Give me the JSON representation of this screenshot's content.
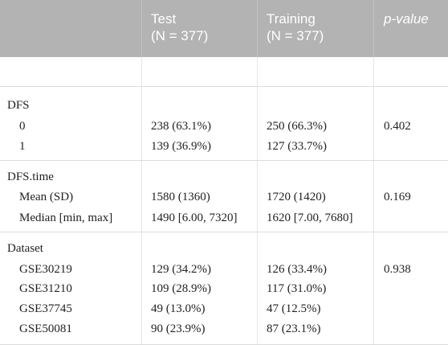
{
  "header": {
    "col_test_l1": "Test",
    "col_test_l2": "(N = 377)",
    "col_train_l1": "Training",
    "col_train_l2": "(N = 377)",
    "col_p": "p-value"
  },
  "sections": {
    "dfs": {
      "label": "DFS",
      "r0": {
        "label": "0",
        "test": "238 (63.1%)",
        "train": "250 (66.3%)"
      },
      "r1": {
        "label": "1",
        "test": "139 (36.9%)",
        "train": "127 (33.7%)"
      },
      "p": "0.402"
    },
    "dfstime": {
      "label": "DFS.time",
      "r0": {
        "label": "Mean (SD)",
        "test": "1580 (1360)",
        "train": "1720 (1420)"
      },
      "r1": {
        "label": "Median [min, max]",
        "test": "1490 [6.00, 7320]",
        "train": "1620 [7.00, 7680]"
      },
      "p": "0.169"
    },
    "dataset": {
      "label": "Dataset",
      "r0": {
        "label": "GSE30219",
        "test": "129 (34.2%)",
        "train": "126 (33.4%)"
      },
      "r1": {
        "label": "GSE31210",
        "test": "109 (28.9%)",
        "train": "117 (31.0%)"
      },
      "r2": {
        "label": "GSE37745",
        "test": "49 (13.0%)",
        "train": "47 (12.5%)"
      },
      "r3": {
        "label": "GSE50081",
        "test": "90 (23.9%)",
        "train": "87 (23.1%)"
      },
      "p": "0.938"
    }
  }
}
